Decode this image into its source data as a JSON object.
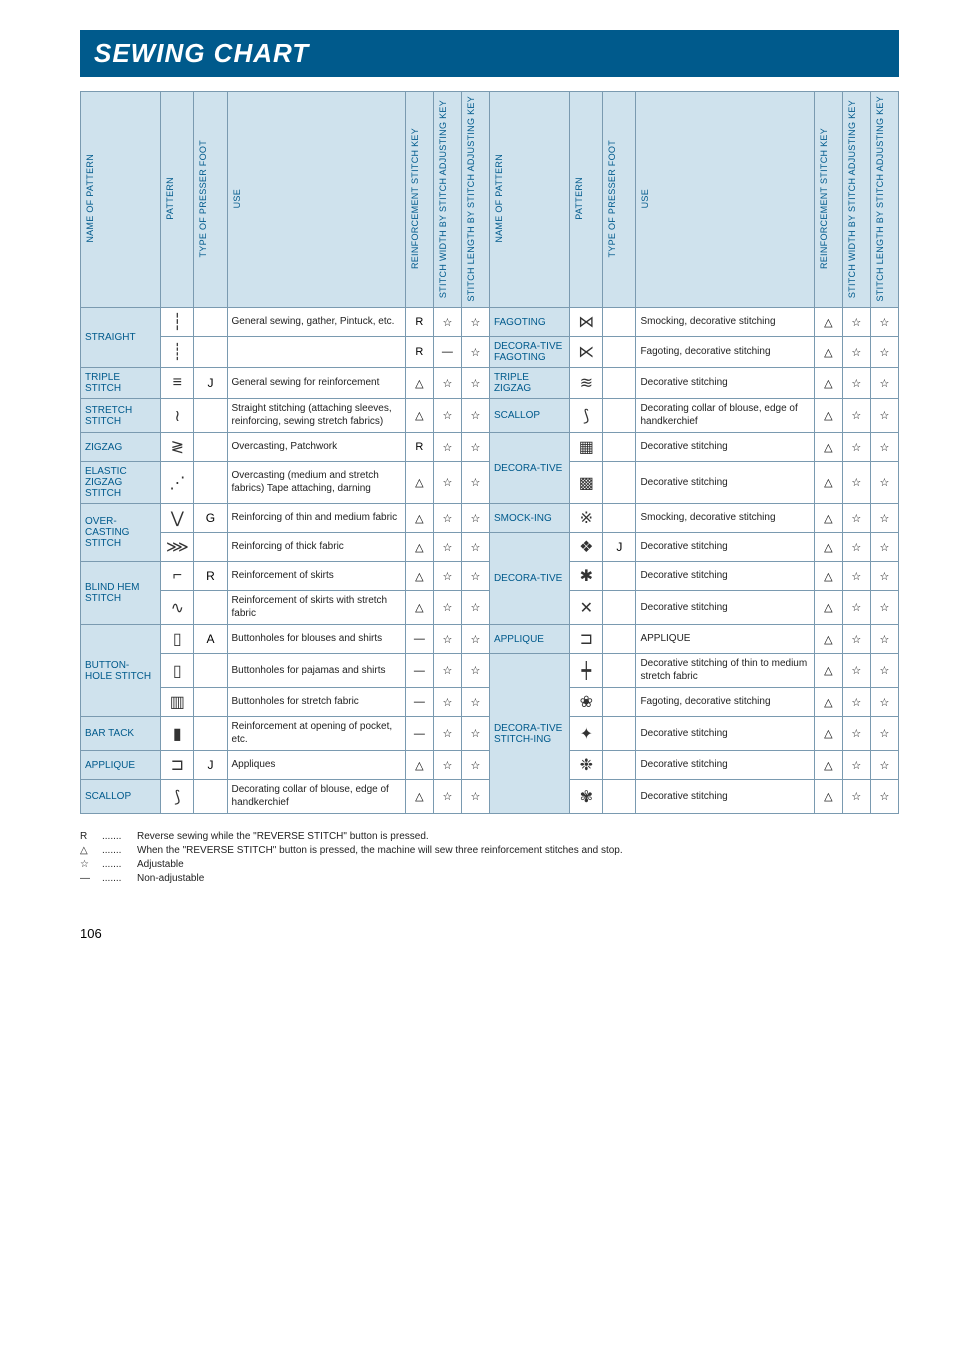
{
  "title": "SEWING CHART",
  "pageNumber": "106",
  "headers": {
    "name": "NAME OF PATTERN",
    "pattern": "PATTERN",
    "foot": "TYPE OF PRESSER FOOT",
    "use": "USE",
    "reinforce": "REINFORCEMENT STITCH KEY",
    "width": "STITCH WIDTH BY STITCH ADJUSTING KEY",
    "length": "STITCH LENGTH BY STITCH ADJUSTING KEY"
  },
  "symbols": {
    "R": "R",
    "tri": "△",
    "star": "☆",
    "dash": "—"
  },
  "patternGlyphs": {
    "straight1": "┆",
    "straight2": "┊",
    "triple": "≡",
    "stretch": "≀",
    "zigzag": "≷",
    "elastic": "⋰",
    "over1": "⋁",
    "over2": "⋙",
    "blind1": "⌐",
    "blind2": "∿",
    "button1": "▯",
    "button2": "▯",
    "button3": "▥",
    "bartack": "▮",
    "applique": "⊐",
    "scallop": "⟆",
    "fagoting": "⋈",
    "decofag": "⋉",
    "triplezig": "≋",
    "scallop2": "⟆",
    "deco1": "▦",
    "deco2": "▩",
    "smock2": "※",
    "deco3": "❖",
    "deco4": "✱",
    "deco5": "✕",
    "appl2": "⊐",
    "deco6": "┿",
    "deco7": "❀",
    "deco8": "✦",
    "deco9": "❉",
    "deco10": "✾"
  },
  "footGlyphs": {
    "J": "J",
    "G": "G",
    "R": "R",
    "A": "A"
  },
  "rowsLeft": [
    {
      "name": "STRAIGHT",
      "span": 2,
      "pat": "straight1",
      "foot": "",
      "use": "General sewing, gather, Pintuck, etc.",
      "r": "R",
      "w": "star",
      "l": "star"
    },
    {
      "pat": "straight2",
      "foot": "",
      "use": "",
      "r": "R",
      "w": "dash",
      "l": "star"
    },
    {
      "name": "TRIPLE STITCH",
      "span": 1,
      "pat": "triple",
      "foot": "J",
      "use": "General sewing for reinforcement",
      "r": "tri",
      "w": "star",
      "l": "star"
    },
    {
      "name": "STRETCH STITCH",
      "span": 1,
      "pat": "stretch",
      "foot": "",
      "use": "Straight stitching (attaching sleeves, reinforcing, sewing stretch fabrics)",
      "r": "tri",
      "w": "star",
      "l": "star"
    },
    {
      "name": "ZIGZAG",
      "span": 1,
      "pat": "zigzag",
      "foot": "",
      "use": "Overcasting, Patchwork",
      "r": "R",
      "w": "star",
      "l": "star"
    },
    {
      "name": "ELASTIC ZIGZAG STITCH",
      "span": 1,
      "pat": "elastic",
      "foot": "",
      "use": "Overcasting (medium and stretch fabrics) Tape attaching, darning",
      "r": "tri",
      "w": "star",
      "l": "star"
    },
    {
      "name": "OVER-CASTING STITCH",
      "span": 2,
      "pat": "over1",
      "foot": "G",
      "use": "Reinforcing of thin and medium fabric",
      "r": "tri",
      "w": "star",
      "l": "star"
    },
    {
      "pat": "over2",
      "foot": "",
      "use": "Reinforcing of thick fabric",
      "r": "tri",
      "w": "star",
      "l": "star"
    },
    {
      "name": "BLIND HEM STITCH",
      "span": 2,
      "pat": "blind1",
      "foot": "R",
      "use": "Reinforcement of skirts",
      "r": "tri",
      "w": "star",
      "l": "star"
    },
    {
      "pat": "blind2",
      "foot": "",
      "use": "Reinforcement of skirts with stretch fabric",
      "r": "tri",
      "w": "star",
      "l": "star"
    },
    {
      "name": "BUTTON-HOLE STITCH",
      "span": 3,
      "pat": "button1",
      "foot": "A",
      "use": "Buttonholes for blouses and shirts",
      "r": "dash",
      "w": "star",
      "l": "star"
    },
    {
      "pat": "button2",
      "foot": "",
      "use": "Buttonholes for pajamas and shirts",
      "r": "dash",
      "w": "star",
      "l": "star"
    },
    {
      "pat": "button3",
      "foot": "",
      "use": "Buttonholes for stretch fabric",
      "r": "dash",
      "w": "star",
      "l": "star"
    },
    {
      "name": "BAR TACK",
      "span": 1,
      "pat": "bartack",
      "foot": "",
      "use": "Reinforcement at opening of pocket, etc.",
      "r": "dash",
      "w": "star",
      "l": "star"
    },
    {
      "name": "APPLIQUE",
      "span": 1,
      "pat": "applique",
      "foot": "J",
      "use": "Appliques",
      "r": "tri",
      "w": "star",
      "l": "star"
    },
    {
      "name": "SCALLOP",
      "span": 1,
      "pat": "scallop",
      "foot": "",
      "use": "Decorating collar of blouse, edge of handkerchief",
      "r": "tri",
      "w": "star",
      "l": "star"
    }
  ],
  "rowsRight": [
    {
      "name": "FAGOTING",
      "span": 1,
      "pat": "fagoting",
      "foot": "",
      "use": "Smocking, decorative stitching",
      "r": "tri",
      "w": "star",
      "l": "star"
    },
    {
      "name": "DECORA-TIVE FAGOTING",
      "span": 1,
      "pat": "decofag",
      "foot": "",
      "use": "Fagoting, decorative stitching",
      "r": "tri",
      "w": "star",
      "l": "star"
    },
    {
      "name": "TRIPLE ZIGZAG",
      "span": 1,
      "pat": "triplezig",
      "foot": "",
      "use": "Decorative stitching",
      "r": "tri",
      "w": "star",
      "l": "star"
    },
    {
      "name": "SCALLOP",
      "span": 1,
      "pat": "scallop2",
      "foot": "",
      "use": "Decorating collar of blouse, edge of handkerchief",
      "r": "tri",
      "w": "star",
      "l": "star"
    },
    {
      "name": "DECORA-TIVE",
      "span": 2,
      "pat": "deco1",
      "foot": "",
      "use": "Decorative stitching",
      "r": "tri",
      "w": "star",
      "l": "star"
    },
    {
      "pat": "deco2",
      "foot": "",
      "use": "Decorative stitching",
      "r": "tri",
      "w": "star",
      "l": "star"
    },
    {
      "name": "SMOCK-ING",
      "span": 1,
      "pat": "smock2",
      "foot": "",
      "use": "Smocking, decorative stitching",
      "r": "tri",
      "w": "star",
      "l": "star"
    },
    {
      "name": "DECORA-TIVE",
      "span": 3,
      "pat": "deco3",
      "foot": "J",
      "use": "Decorative stitching",
      "r": "tri",
      "w": "star",
      "l": "star"
    },
    {
      "pat": "deco4",
      "foot": "",
      "use": "Decorative stitching",
      "r": "tri",
      "w": "star",
      "l": "star"
    },
    {
      "pat": "deco5",
      "foot": "",
      "use": "Decorative stitching",
      "r": "tri",
      "w": "star",
      "l": "star"
    },
    {
      "name": "APPLIQUE",
      "span": 1,
      "pat": "appl2",
      "foot": "",
      "use": "APPLIQUE",
      "r": "tri",
      "w": "star",
      "l": "star"
    },
    {
      "name": "DECORA-TIVE STITCH-ING",
      "span": 5,
      "pat": "deco6",
      "foot": "",
      "use": "Decorative stitching of thin to medium stretch fabric",
      "r": "tri",
      "w": "star",
      "l": "star"
    },
    {
      "pat": "deco7",
      "foot": "",
      "use": "Fagoting, decorative stitching",
      "r": "tri",
      "w": "star",
      "l": "star"
    },
    {
      "pat": "deco8",
      "foot": "",
      "use": "Decorative stitching",
      "r": "tri",
      "w": "star",
      "l": "star"
    },
    {
      "pat": "deco9",
      "foot": "",
      "use": "Decorative stitching",
      "r": "tri",
      "w": "star",
      "l": "star"
    },
    {
      "pat": "deco10",
      "foot": "",
      "use": "Decorative stitching",
      "r": "tri",
      "w": "star",
      "l": "star"
    }
  ],
  "legend": [
    {
      "sym": "R",
      "text": "Reverse sewing while the \"REVERSE STITCH\" button is pressed."
    },
    {
      "sym": "△",
      "text": "When the \"REVERSE STITCH\" button is pressed, the machine will sew three reinforcement stitches and stop."
    },
    {
      "sym": "☆",
      "text": "Adjustable"
    },
    {
      "sym": "—",
      "text": "Non-adjustable"
    }
  ]
}
